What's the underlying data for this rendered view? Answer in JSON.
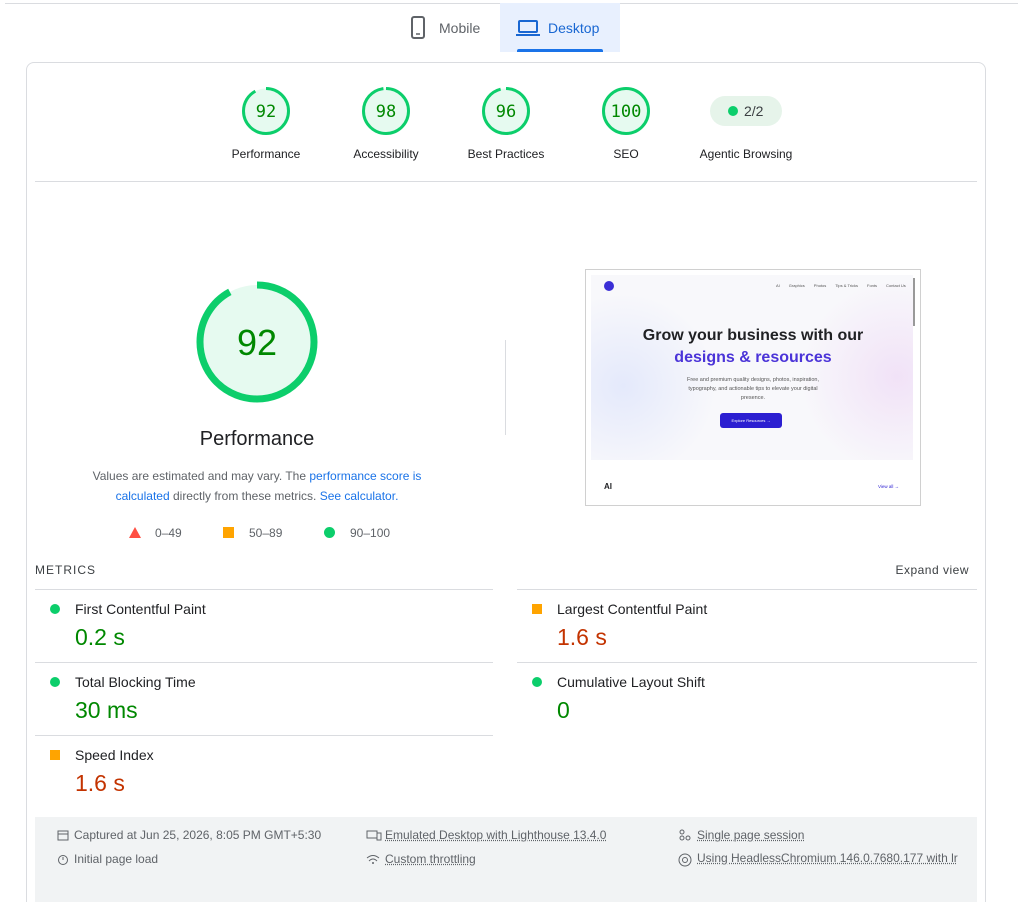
{
  "tabs": [
    "Mobile",
    "Desktop"
  ],
  "categories": [
    {
      "score": 92,
      "label": "Performance"
    },
    {
      "score": 98,
      "label": "Accessibility"
    },
    {
      "score": 96,
      "label": "Best Practices"
    },
    {
      "score": 100,
      "label": "SEO"
    },
    {
      "score": "2/2",
      "label": "Agentic Browsing"
    }
  ],
  "main": {
    "score": 92,
    "title": "Performance",
    "note_start": "Values are estimated and may vary. The ",
    "note_link1": "performance score is calculated",
    "note_mid": " directly from these metrics. ",
    "note_link2": "See calculator.",
    "legend": [
      "0–49",
      "50–89",
      "90–100"
    ]
  },
  "screenshot": {
    "nav": [
      "AI",
      "Graphics",
      "Photos",
      "Tips & Tricks",
      "Fonts",
      "Contact Us"
    ],
    "headline1": "Grow your business with our",
    "headline2": "designs & resources",
    "text": "Free and premium quality designs, photos, inspiration, typography, and actionable tips to elevate your digital presence.",
    "button": "Explore Resources →",
    "section": "AI",
    "view_all": "View all →"
  },
  "metrics": {
    "heading": "METRICS",
    "expand": "Expand view",
    "items": [
      {
        "name": "First Contentful Paint",
        "value": "0.2 s",
        "status": "pass"
      },
      {
        "name": "Largest Contentful Paint",
        "value": "1.6 s",
        "status": "average"
      },
      {
        "name": "Total Blocking Time",
        "value": "30 ms",
        "status": "pass"
      },
      {
        "name": "Cumulative Layout Shift",
        "value": "0",
        "status": "pass"
      },
      {
        "name": "Speed Index",
        "value": "1.6 s",
        "status": "average"
      }
    ]
  },
  "footer": {
    "captured": "Captured at Jun 25, 2026, 8:05 PM GMT+5:30",
    "load": "Initial page load",
    "device": "Emulated Desktop with Lighthouse 13.4.0",
    "throttling": "Custom throttling",
    "session": "Single page session",
    "browser": "Using HeadlessChromium 146.0.7680.177 with lr"
  }
}
